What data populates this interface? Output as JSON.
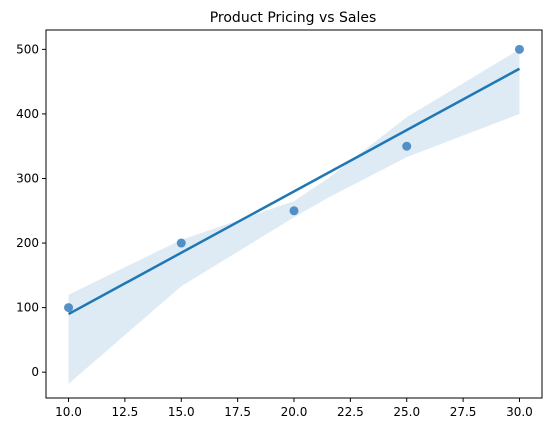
{
  "chart_data": {
    "type": "scatter",
    "title": "Product Pricing vs Sales",
    "xlabel": "",
    "ylabel": "",
    "xlim": [
      9,
      31
    ],
    "ylim": [
      -40,
      530
    ],
    "xticks": [
      10.0,
      12.5,
      15.0,
      17.5,
      20.0,
      22.5,
      25.0,
      27.5,
      30.0
    ],
    "xtick_labels": [
      "10.0",
      "12.5",
      "15.0",
      "17.5",
      "20.0",
      "22.5",
      "25.0",
      "27.5",
      "30.0"
    ],
    "yticks": [
      0,
      100,
      200,
      300,
      400,
      500
    ],
    "ytick_labels": [
      "0",
      "100",
      "200",
      "300",
      "400",
      "500"
    ],
    "grid": false,
    "points": [
      {
        "x": 10,
        "y": 100
      },
      {
        "x": 15,
        "y": 200
      },
      {
        "x": 20,
        "y": 250
      },
      {
        "x": 25,
        "y": 350
      },
      {
        "x": 30,
        "y": 500
      }
    ],
    "regression_line": [
      {
        "x": 10,
        "y": 90
      },
      {
        "x": 30,
        "y": 470
      }
    ],
    "confidence_band": {
      "x": [
        10,
        15,
        20,
        21.5,
        25,
        30
      ],
      "upper": [
        120,
        205,
        265,
        300,
        395,
        500
      ],
      "lower": [
        -18,
        133,
        240,
        270,
        333,
        400
      ]
    },
    "colors": {
      "points": "#3a7fbd",
      "line": "#1f77b4",
      "band": "#1f77b4"
    }
  }
}
